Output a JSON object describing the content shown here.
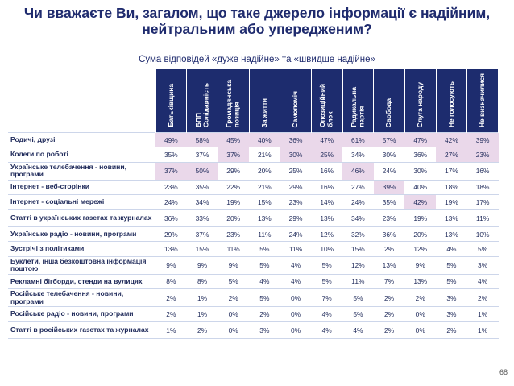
{
  "title": "Чи вважаєте Ви, загалом, що таке джерело інформації є надійним, нейтральним або упередженим?",
  "subtitle": "Сума відповідей «дуже надійне» та «швидше надійне»",
  "page_number": "68",
  "colors": {
    "header": "#1d2c6e",
    "highlight": "#ead8ea"
  },
  "columns": [
    "Батьківщина",
    "БПП\nСолідарність",
    "Громадянська\nпозиція",
    "За життя",
    "Самопоміч",
    "Опозиційний\nблок",
    "Радикальна\nпартія",
    "Свобода",
    "Слуга народу",
    "Не голосують",
    "Не визначилися"
  ],
  "rows": [
    {
      "label": "Родичі, друзі",
      "values": [
        "49%",
        "58%",
        "45%",
        "40%",
        "36%",
        "47%",
        "61%",
        "57%",
        "47%",
        "42%",
        "39%"
      ],
      "highlight": [
        1,
        1,
        1,
        1,
        1,
        1,
        1,
        1,
        1,
        1,
        1
      ]
    },
    {
      "label": "Колеги по роботі",
      "values": [
        "35%",
        "37%",
        "37%",
        "21%",
        "30%",
        "25%",
        "34%",
        "30%",
        "36%",
        "27%",
        "23%"
      ],
      "highlight": [
        0,
        0,
        1,
        0,
        1,
        1,
        0,
        0,
        0,
        1,
        1
      ]
    },
    {
      "label": "Українське телебачення - новини, програми",
      "values": [
        "37%",
        "50%",
        "29%",
        "20%",
        "25%",
        "16%",
        "46%",
        "24%",
        "30%",
        "17%",
        "16%"
      ],
      "highlight": [
        1,
        1,
        0,
        0,
        0,
        0,
        1,
        0,
        0,
        0,
        0
      ]
    },
    {
      "label": "Інтернет - веб-сторінки",
      "values": [
        "23%",
        "35%",
        "22%",
        "21%",
        "29%",
        "16%",
        "27%",
        "39%",
        "40%",
        "18%",
        "18%"
      ],
      "highlight": [
        0,
        0,
        0,
        0,
        0,
        0,
        0,
        1,
        0,
        0,
        0
      ]
    },
    {
      "label": "Інтернет - соціальні мережі",
      "values": [
        "24%",
        "34%",
        "19%",
        "15%",
        "23%",
        "14%",
        "24%",
        "35%",
        "42%",
        "19%",
        "17%"
      ],
      "highlight": [
        0,
        0,
        0,
        0,
        0,
        0,
        0,
        0,
        1,
        0,
        0
      ]
    },
    {
      "label": "Статті в українських газетах та журналах",
      "values": [
        "36%",
        "33%",
        "20%",
        "13%",
        "29%",
        "13%",
        "34%",
        "23%",
        "19%",
        "13%",
        "11%"
      ],
      "highlight": [
        0,
        0,
        0,
        0,
        0,
        0,
        0,
        0,
        0,
        0,
        0
      ]
    },
    {
      "label": "Українське радіо - новини, програми",
      "values": [
        "29%",
        "37%",
        "23%",
        "11%",
        "24%",
        "12%",
        "32%",
        "36%",
        "20%",
        "13%",
        "10%"
      ],
      "highlight": [
        0,
        0,
        0,
        0,
        0,
        0,
        0,
        0,
        0,
        0,
        0
      ]
    },
    {
      "label": "Зустрічі з політиками",
      "values": [
        "13%",
        "15%",
        "11%",
        "5%",
        "11%",
        "10%",
        "15%",
        "2%",
        "12%",
        "4%",
        "5%"
      ],
      "highlight": [
        0,
        0,
        0,
        0,
        0,
        0,
        0,
        0,
        0,
        0,
        0
      ]
    },
    {
      "label": "Буклети, інша безкоштовна інформація поштою",
      "values": [
        "9%",
        "9%",
        "9%",
        "5%",
        "4%",
        "5%",
        "12%",
        "13%",
        "9%",
        "5%",
        "3%"
      ],
      "highlight": [
        0,
        0,
        0,
        0,
        0,
        0,
        0,
        0,
        0,
        0,
        0
      ]
    },
    {
      "label": "Рекламні бігборди, стенди на вулицях",
      "values": [
        "8%",
        "8%",
        "5%",
        "4%",
        "4%",
        "5%",
        "11%",
        "7%",
        "13%",
        "5%",
        "4%"
      ],
      "highlight": [
        0,
        0,
        0,
        0,
        0,
        0,
        0,
        0,
        0,
        0,
        0
      ]
    },
    {
      "label": "Російське телебачення - новини, програми",
      "values": [
        "2%",
        "1%",
        "2%",
        "5%",
        "0%",
        "7%",
        "5%",
        "2%",
        "2%",
        "3%",
        "2%"
      ],
      "highlight": [
        0,
        0,
        0,
        0,
        0,
        0,
        0,
        0,
        0,
        0,
        0
      ]
    },
    {
      "label": "Російське радіо - новини, програми",
      "values": [
        "2%",
        "1%",
        "0%",
        "2%",
        "0%",
        "4%",
        "5%",
        "2%",
        "0%",
        "3%",
        "1%"
      ],
      "highlight": [
        0,
        0,
        0,
        0,
        0,
        0,
        0,
        0,
        0,
        0,
        0
      ]
    },
    {
      "label": "Статті в російських газетах та журналах",
      "values": [
        "1%",
        "2%",
        "0%",
        "3%",
        "0%",
        "4%",
        "4%",
        "2%",
        "0%",
        "2%",
        "1%"
      ],
      "highlight": [
        0,
        0,
        0,
        0,
        0,
        0,
        0,
        0,
        0,
        0,
        0
      ]
    }
  ]
}
